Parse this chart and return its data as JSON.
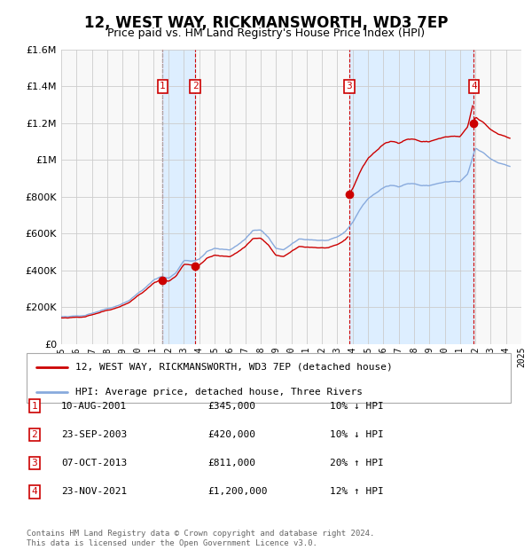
{
  "title": "12, WEST WAY, RICKMANSWORTH, WD3 7EP",
  "subtitle": "Price paid vs. HM Land Registry's House Price Index (HPI)",
  "xlim": [
    1995,
    2025
  ],
  "ylim": [
    0,
    1600000
  ],
  "yticks": [
    0,
    200000,
    400000,
    600000,
    800000,
    1000000,
    1200000,
    1400000,
    1600000
  ],
  "ytick_labels": [
    "£0",
    "£200K",
    "£400K",
    "£600K",
    "£800K",
    "£1M",
    "£1.2M",
    "£1.4M",
    "£1.6M"
  ],
  "xticks": [
    1995,
    1996,
    1997,
    1998,
    1999,
    2000,
    2001,
    2002,
    2003,
    2004,
    2005,
    2006,
    2007,
    2008,
    2009,
    2010,
    2011,
    2012,
    2013,
    2014,
    2015,
    2016,
    2017,
    2018,
    2019,
    2020,
    2021,
    2022,
    2023,
    2024,
    2025
  ],
  "sale_color": "#cc0000",
  "hpi_color": "#88aadd",
  "shade_color": "#ddeeff",
  "vline_color": "#cc0000",
  "grid_color": "#cccccc",
  "bg_color": "#f8f8f8",
  "legend_label_sale": "12, WEST WAY, RICKMANSWORTH, WD3 7EP (detached house)",
  "legend_label_hpi": "HPI: Average price, detached house, Three Rivers",
  "sales": [
    {
      "num": 1,
      "date": "10-AUG-2001",
      "year": 2001.61,
      "price": 345000,
      "pct": "10",
      "dir": "↓"
    },
    {
      "num": 2,
      "date": "23-SEP-2003",
      "year": 2003.73,
      "price": 420000,
      "pct": "10",
      "dir": "↓"
    },
    {
      "num": 3,
      "date": "07-OCT-2013",
      "year": 2013.77,
      "price": 811000,
      "pct": "20",
      "dir": "↑"
    },
    {
      "num": 4,
      "date": "23-NOV-2021",
      "year": 2021.9,
      "price": 1200000,
      "pct": "12",
      "dir": "↑"
    }
  ],
  "shade_ranges": [
    [
      2001.61,
      2003.73
    ]
  ],
  "shade2_ranges": [
    [
      2013.77,
      2021.9
    ]
  ],
  "footer": "Contains HM Land Registry data © Crown copyright and database right 2024.\nThis data is licensed under the Open Government Licence v3.0.",
  "hpi_knots": {
    "years": [
      1995.0,
      1995.5,
      1996.0,
      1996.5,
      1997.0,
      1997.5,
      1998.0,
      1998.5,
      1999.0,
      1999.5,
      2000.0,
      2000.5,
      2001.0,
      2001.5,
      2002.0,
      2002.5,
      2003.0,
      2003.5,
      2004.0,
      2004.5,
      2005.0,
      2005.5,
      2006.0,
      2006.5,
      2007.0,
      2007.5,
      2008.0,
      2008.5,
      2009.0,
      2009.5,
      2010.0,
      2010.5,
      2011.0,
      2011.5,
      2012.0,
      2012.5,
      2013.0,
      2013.5,
      2014.0,
      2014.5,
      2015.0,
      2015.5,
      2016.0,
      2016.5,
      2017.0,
      2017.5,
      2018.0,
      2018.5,
      2019.0,
      2019.5,
      2020.0,
      2020.5,
      2021.0,
      2021.5,
      2022.0,
      2022.5,
      2023.0,
      2023.5,
      2024.0,
      2024.25
    ],
    "values": [
      148000,
      145000,
      149000,
      155000,
      169000,
      183000,
      197000,
      209000,
      228000,
      249000,
      284000,
      315000,
      352000,
      373000,
      365000,
      395000,
      463000,
      461000,
      470000,
      512000,
      528000,
      521000,
      520000,
      547000,
      580000,
      628000,
      630000,
      590000,
      525000,
      520000,
      545000,
      574000,
      572000,
      571000,
      568000,
      569000,
      580000,
      607000,
      660000,
      735000,
      790000,
      820000,
      850000,
      861000,
      855000,
      874000,
      875000,
      864000,
      863000,
      875000,
      882000,
      885000,
      882000,
      920000,
      1060000,
      1035000,
      1000000,
      980000,
      970000,
      965000
    ]
  }
}
